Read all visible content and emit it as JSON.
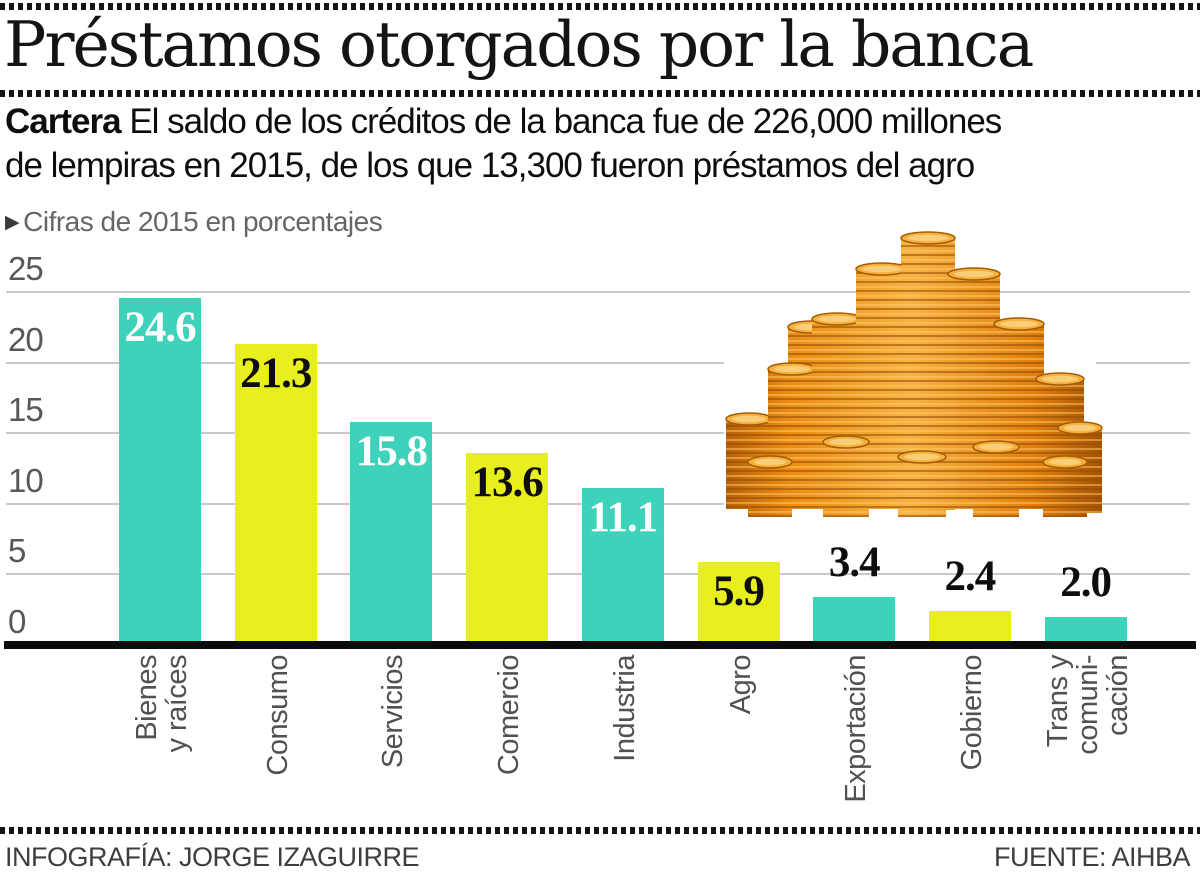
{
  "header": {
    "title": "Préstamos otorgados por la banca",
    "lead_label": "Cartera",
    "lead_line1": "El saldo de los créditos de la banca  fue de 226,000 millones",
    "lead_line2": "de lempiras en 2015, de los que 13,300  fueron préstamos del agro",
    "note_marker": "▶",
    "note_text": "Cifras de 2015 en porcentajes"
  },
  "chart_data": {
    "type": "bar",
    "title": "Préstamos otorgados por la banca",
    "note": "Cifras de 2015 en porcentajes",
    "xlabel": "",
    "ylabel": "",
    "ylim": [
      0,
      25
    ],
    "yticks": [
      0,
      5,
      10,
      15,
      20,
      25
    ],
    "grid": true,
    "legend": "none",
    "categories": [
      "Bienes\ny raíces",
      "Consumo",
      "Servicios",
      "Comercio",
      "Industria",
      "Agro",
      "Exportación",
      "Gobierno",
      "Trans y\ncomuni-\ncación"
    ],
    "values": [
      24.6,
      21.3,
      15.8,
      13.6,
      11.1,
      5.9,
      3.4,
      2.4,
      2.0
    ],
    "value_labels": [
      "24.6",
      "21.3",
      "15.8",
      "13.6",
      "11.1",
      "5.9",
      "3.4",
      "2.4",
      "2.0"
    ],
    "bar_palette": {
      "teal": "#3ed2bb",
      "yellow": "#e7ef1e"
    },
    "bar_color_keys": [
      "teal",
      "yellow",
      "teal",
      "yellow",
      "teal",
      "yellow",
      "teal",
      "yellow",
      "teal"
    ],
    "value_label_styles": [
      "inside-white",
      "inside-black",
      "inside-white",
      "inside-black",
      "inside-white",
      "inside-black",
      "above",
      "above",
      "above"
    ],
    "value_label_colors": {
      "inside-white": "#ffffff",
      "inside-black": "#0d0d0d",
      "above": "#0d0d0d"
    }
  },
  "decor": {
    "coins_illustration": "pyramid of stacked gold coins"
  },
  "footer": {
    "credit": "INFOGRAFÍA: JORGE IZAGUIRRE",
    "source": "FUENTE: AIHBA"
  }
}
